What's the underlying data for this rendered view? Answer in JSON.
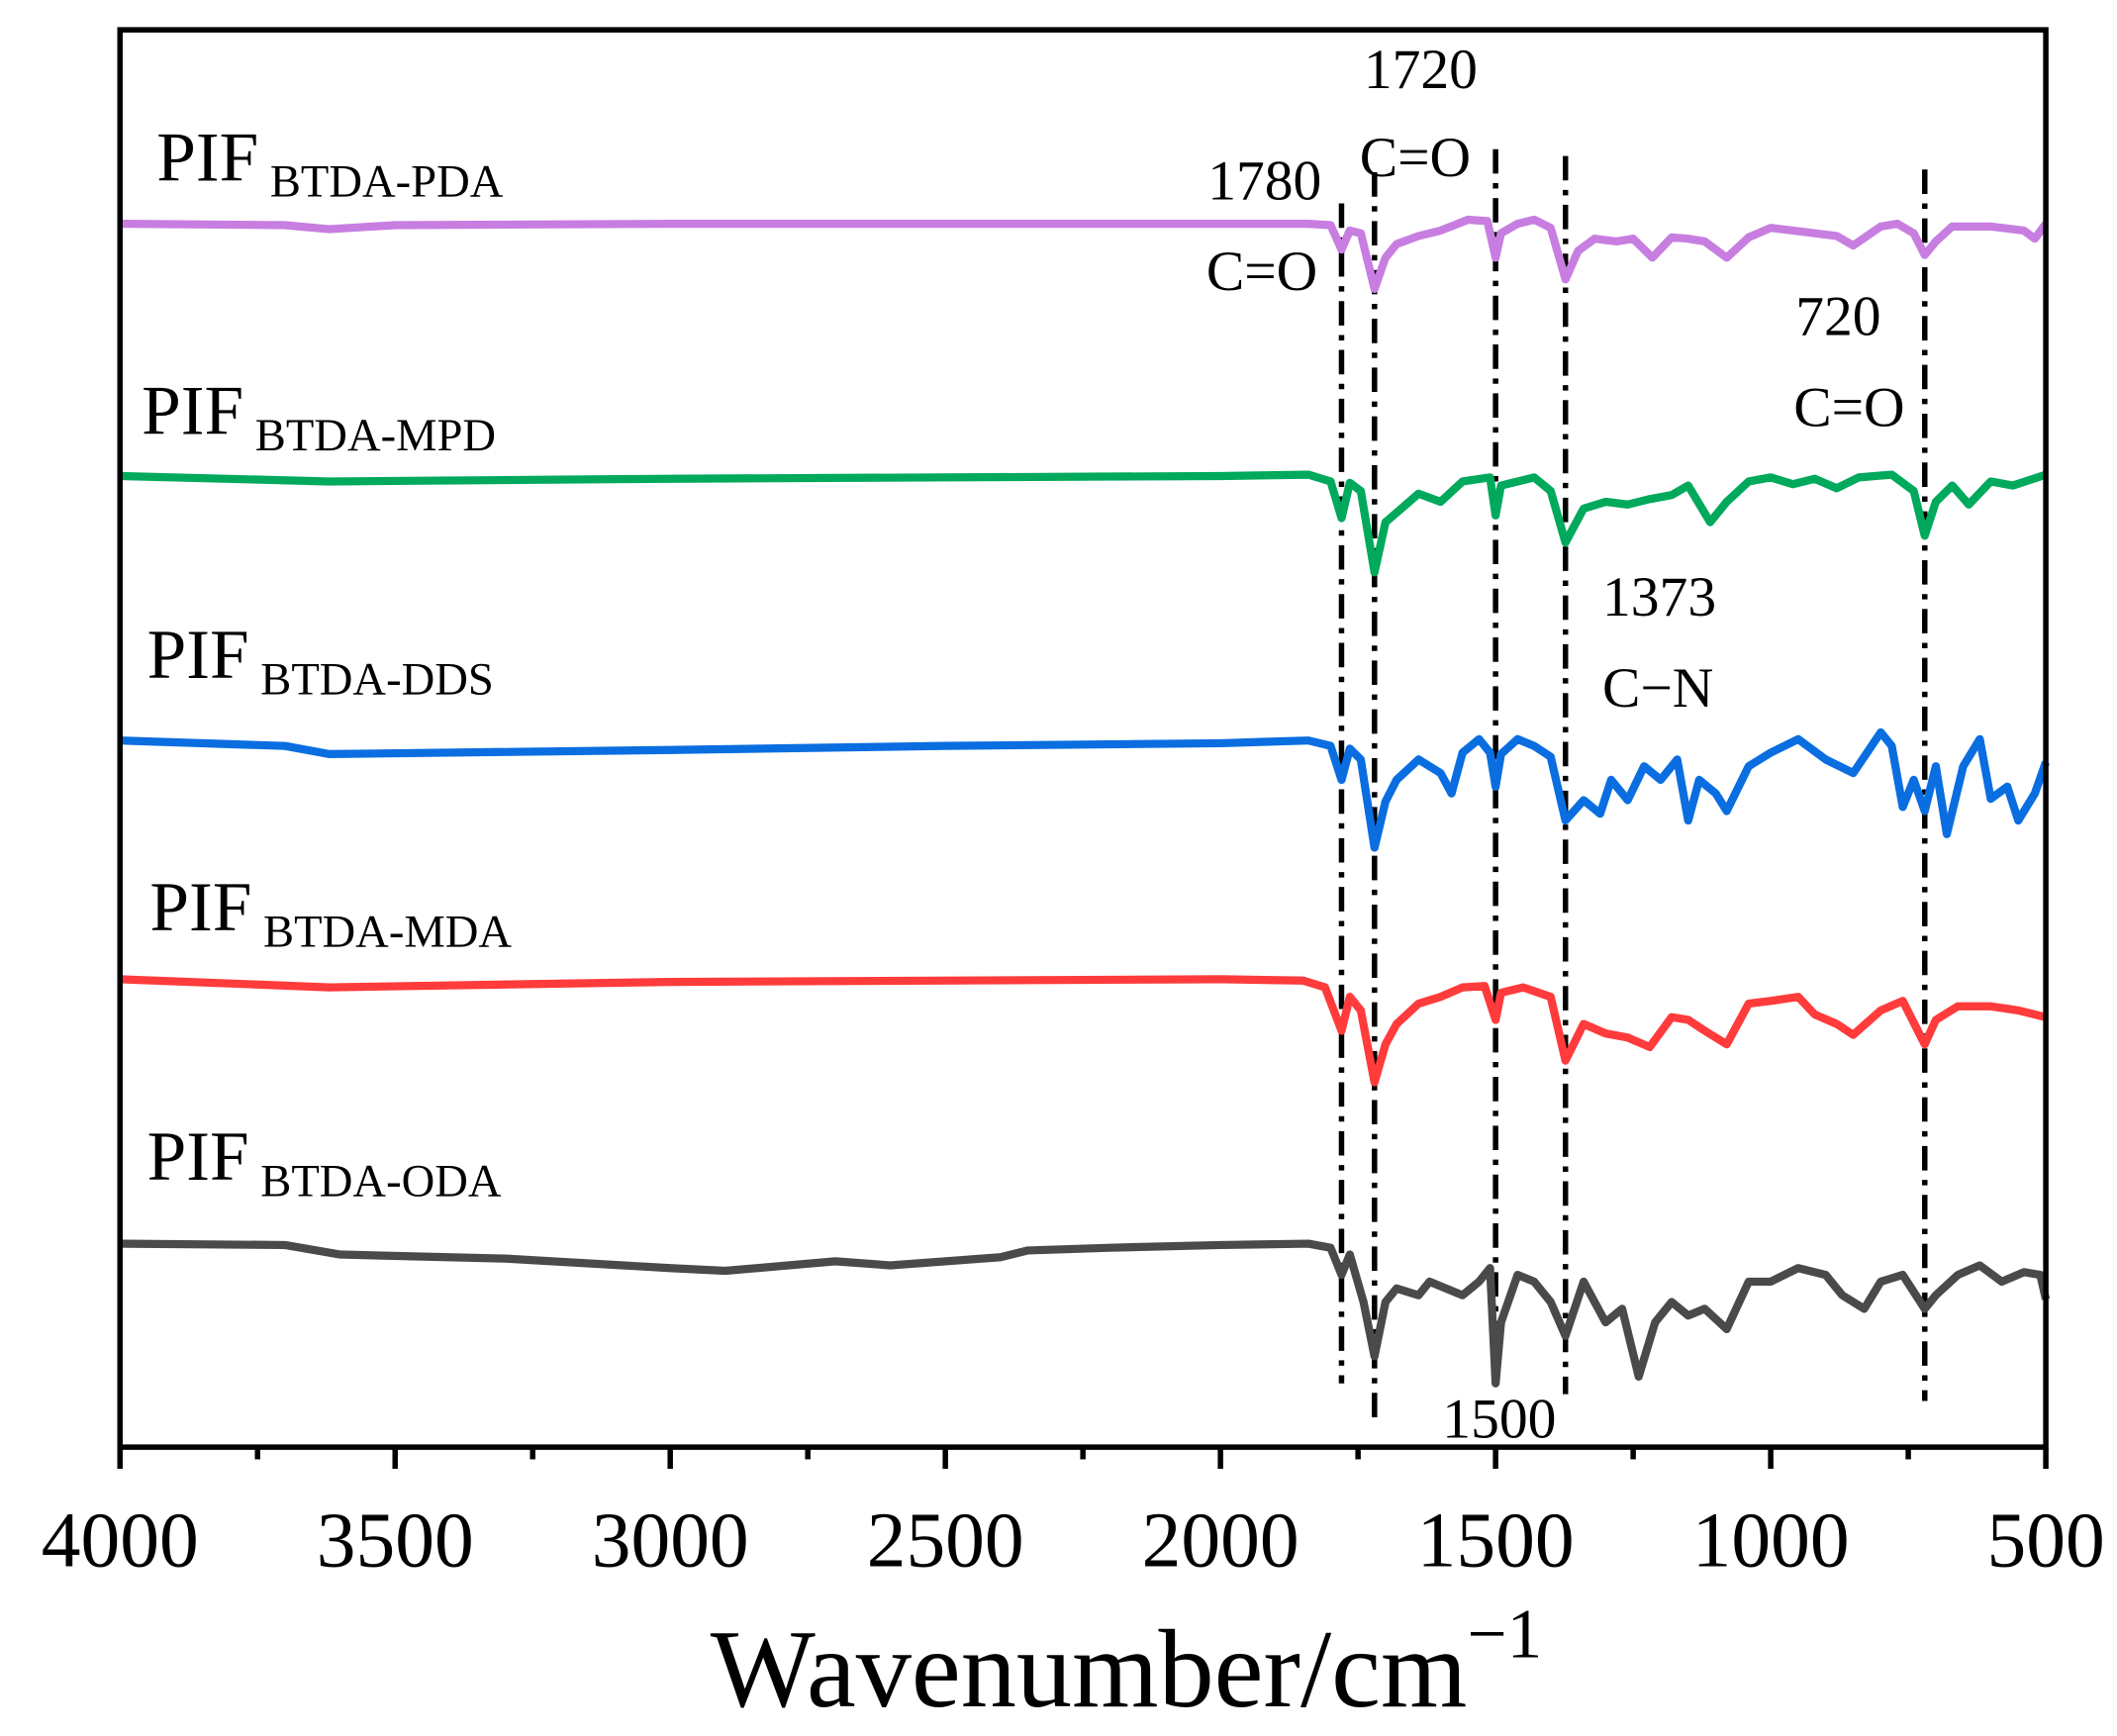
{
  "chart_data": {
    "type": "line",
    "title": "",
    "xlabel": "Wavenumber/cm",
    "xlabel_superscript": "−1",
    "ylabel": "",
    "xlim": [
      4000,
      500
    ],
    "x_reversed": true,
    "ylim": [
      0,
      104.5
    ],
    "y_units": "arbitrary (stacked spectra, no y ticks)",
    "grid": false,
    "legend": "inline labels above each curve",
    "x_ticks": [
      4000,
      3500,
      3000,
      2500,
      2000,
      1500,
      1000,
      500
    ],
    "x_tick_labels": [
      "4000",
      "3500",
      "3000",
      "2500",
      "2000",
      "1500",
      "1000",
      "500"
    ],
    "reference_lines": [
      1780,
      1720,
      1500,
      1373,
      720
    ],
    "annotations": [
      {
        "id": "a1720",
        "lines": [
          "1720",
          "C=O"
        ]
      },
      {
        "id": "a1780",
        "lines": [
          "1780",
          "C=O"
        ]
      },
      {
        "id": "a720",
        "lines": [
          "720",
          "C=O"
        ]
      },
      {
        "id": "a1373",
        "lines": [
          "1373",
          "C−N"
        ]
      },
      {
        "id": "a1500",
        "lines": [
          "1500"
        ]
      }
    ],
    "series": [
      {
        "name": "PIF",
        "subscript": "BTDA-PDA",
        "color": "#c77ee0",
        "points": [
          [
            4000,
            90.2
          ],
          [
            3700,
            90.1
          ],
          [
            3620,
            89.8
          ],
          [
            3500,
            90.1
          ],
          [
            3000,
            90.2
          ],
          [
            2000,
            90.2
          ],
          [
            1840,
            90.2
          ],
          [
            1800,
            90.1
          ],
          [
            1780,
            88.3
          ],
          [
            1765,
            89.7
          ],
          [
            1745,
            89.5
          ],
          [
            1720,
            85.4
          ],
          [
            1700,
            87.7
          ],
          [
            1680,
            88.7
          ],
          [
            1640,
            89.3
          ],
          [
            1600,
            89.7
          ],
          [
            1550,
            90.5
          ],
          [
            1515,
            90.4
          ],
          [
            1500,
            87.7
          ],
          [
            1490,
            89.5
          ],
          [
            1460,
            90.2
          ],
          [
            1430,
            90.5
          ],
          [
            1400,
            89.9
          ],
          [
            1373,
            86.1
          ],
          [
            1350,
            88.2
          ],
          [
            1320,
            89.1
          ],
          [
            1280,
            88.9
          ],
          [
            1250,
            89.1
          ],
          [
            1215,
            87.7
          ],
          [
            1180,
            89.2
          ],
          [
            1150,
            89.1
          ],
          [
            1120,
            88.9
          ],
          [
            1080,
            87.7
          ],
          [
            1040,
            89.2
          ],
          [
            1000,
            89.9
          ],
          [
            960,
            89.7
          ],
          [
            920,
            89.5
          ],
          [
            880,
            89.3
          ],
          [
            850,
            88.6
          ],
          [
            800,
            90.0
          ],
          [
            770,
            90.2
          ],
          [
            740,
            89.5
          ],
          [
            720,
            87.9
          ],
          [
            700,
            88.9
          ],
          [
            670,
            90.0
          ],
          [
            600,
            90.0
          ],
          [
            540,
            89.7
          ],
          [
            520,
            89.1
          ],
          [
            500,
            90.2
          ]
        ]
      },
      {
        "name": "PIF",
        "subscript": "BTDA-MPD",
        "color": "#00a95c",
        "points": [
          [
            4000,
            71.6
          ],
          [
            3620,
            71.2
          ],
          [
            3000,
            71.4
          ],
          [
            2000,
            71.6
          ],
          [
            1840,
            71.7
          ],
          [
            1800,
            71.2
          ],
          [
            1780,
            68.5
          ],
          [
            1765,
            71.1
          ],
          [
            1745,
            70.5
          ],
          [
            1720,
            64.5
          ],
          [
            1700,
            68.2
          ],
          [
            1680,
            68.9
          ],
          [
            1640,
            70.3
          ],
          [
            1600,
            69.7
          ],
          [
            1560,
            71.2
          ],
          [
            1510,
            71.5
          ],
          [
            1500,
            68.7
          ],
          [
            1490,
            70.9
          ],
          [
            1460,
            71.2
          ],
          [
            1430,
            71.5
          ],
          [
            1400,
            70.5
          ],
          [
            1373,
            66.7
          ],
          [
            1340,
            69.2
          ],
          [
            1300,
            69.7
          ],
          [
            1260,
            69.5
          ],
          [
            1220,
            69.9
          ],
          [
            1180,
            70.2
          ],
          [
            1150,
            70.9
          ],
          [
            1110,
            68.2
          ],
          [
            1080,
            69.7
          ],
          [
            1040,
            71.2
          ],
          [
            1000,
            71.5
          ],
          [
            960,
            71.0
          ],
          [
            920,
            71.4
          ],
          [
            880,
            70.7
          ],
          [
            840,
            71.5
          ],
          [
            780,
            71.7
          ],
          [
            740,
            70.5
          ],
          [
            720,
            67.2
          ],
          [
            700,
            69.7
          ],
          [
            670,
            70.9
          ],
          [
            640,
            69.5
          ],
          [
            600,
            71.2
          ],
          [
            560,
            70.9
          ],
          [
            500,
            71.7
          ]
        ]
      },
      {
        "name": "PIF",
        "subscript": "BTDA-DDS",
        "color": "#0a6ee0",
        "points": [
          [
            4000,
            52.1
          ],
          [
            3700,
            51.7
          ],
          [
            3620,
            51.1
          ],
          [
            3000,
            51.4
          ],
          [
            2500,
            51.7
          ],
          [
            2000,
            51.9
          ],
          [
            1840,
            52.1
          ],
          [
            1800,
            51.7
          ],
          [
            1780,
            49.2
          ],
          [
            1765,
            51.5
          ],
          [
            1745,
            50.7
          ],
          [
            1720,
            44.2
          ],
          [
            1700,
            47.6
          ],
          [
            1680,
            49.2
          ],
          [
            1640,
            50.7
          ],
          [
            1600,
            49.7
          ],
          [
            1580,
            48.2
          ],
          [
            1560,
            51.2
          ],
          [
            1530,
            52.2
          ],
          [
            1510,
            51.2
          ],
          [
            1500,
            48.7
          ],
          [
            1490,
            51.1
          ],
          [
            1460,
            52.2
          ],
          [
            1430,
            51.7
          ],
          [
            1400,
            50.9
          ],
          [
            1373,
            46.2
          ],
          [
            1340,
            47.7
          ],
          [
            1310,
            46.7
          ],
          [
            1290,
            49.2
          ],
          [
            1260,
            47.7
          ],
          [
            1230,
            50.2
          ],
          [
            1200,
            49.2
          ],
          [
            1170,
            50.7
          ],
          [
            1150,
            46.2
          ],
          [
            1130,
            49.2
          ],
          [
            1100,
            48.2
          ],
          [
            1080,
            46.9
          ],
          [
            1040,
            50.2
          ],
          [
            1000,
            51.2
          ],
          [
            950,
            52.2
          ],
          [
            900,
            50.7
          ],
          [
            850,
            49.7
          ],
          [
            800,
            52.7
          ],
          [
            780,
            51.7
          ],
          [
            760,
            47.2
          ],
          [
            740,
            49.2
          ],
          [
            720,
            46.9
          ],
          [
            700,
            50.2
          ],
          [
            680,
            45.2
          ],
          [
            650,
            50.2
          ],
          [
            620,
            52.2
          ],
          [
            600,
            47.8
          ],
          [
            570,
            48.7
          ],
          [
            550,
            46.2
          ],
          [
            520,
            48.2
          ],
          [
            500,
            50.5
          ]
        ]
      },
      {
        "name": "PIF",
        "subscript": "BTDA-MDA",
        "color": "#ff3b3b",
        "points": [
          [
            4000,
            34.5
          ],
          [
            3620,
            33.9
          ],
          [
            3000,
            34.3
          ],
          [
            2000,
            34.5
          ],
          [
            1850,
            34.4
          ],
          [
            1810,
            33.9
          ],
          [
            1780,
            30.7
          ],
          [
            1765,
            33.2
          ],
          [
            1745,
            32.2
          ],
          [
            1720,
            26.9
          ],
          [
            1700,
            29.7
          ],
          [
            1680,
            31.2
          ],
          [
            1640,
            32.7
          ],
          [
            1600,
            33.2
          ],
          [
            1560,
            33.9
          ],
          [
            1520,
            34.0
          ],
          [
            1500,
            31.5
          ],
          [
            1490,
            33.5
          ],
          [
            1450,
            33.9
          ],
          [
            1400,
            33.2
          ],
          [
            1373,
            28.5
          ],
          [
            1340,
            31.2
          ],
          [
            1300,
            30.5
          ],
          [
            1260,
            30.2
          ],
          [
            1220,
            29.5
          ],
          [
            1180,
            31.7
          ],
          [
            1150,
            31.5
          ],
          [
            1120,
            30.7
          ],
          [
            1080,
            29.7
          ],
          [
            1040,
            32.7
          ],
          [
            1000,
            32.9
          ],
          [
            950,
            33.2
          ],
          [
            920,
            31.9
          ],
          [
            880,
            31.2
          ],
          [
            850,
            30.4
          ],
          [
            800,
            32.2
          ],
          [
            760,
            32.9
          ],
          [
            720,
            29.7
          ],
          [
            700,
            31.5
          ],
          [
            660,
            32.5
          ],
          [
            600,
            32.5
          ],
          [
            550,
            32.2
          ],
          [
            500,
            31.7
          ]
        ]
      },
      {
        "name": "PIF",
        "subscript": "BTDA-ODA",
        "color": "#4a4a4a",
        "points": [
          [
            4000,
            15.0
          ],
          [
            3700,
            14.9
          ],
          [
            3600,
            14.2
          ],
          [
            3300,
            13.9
          ],
          [
            3000,
            13.2
          ],
          [
            2900,
            13.0
          ],
          [
            2700,
            13.7
          ],
          [
            2600,
            13.4
          ],
          [
            2400,
            14.0
          ],
          [
            2350,
            14.5
          ],
          [
            2200,
            14.7
          ],
          [
            2000,
            14.9
          ],
          [
            1840,
            15.0
          ],
          [
            1800,
            14.7
          ],
          [
            1780,
            12.7
          ],
          [
            1765,
            14.2
          ],
          [
            1740,
            10.7
          ],
          [
            1720,
            6.7
          ],
          [
            1700,
            10.7
          ],
          [
            1680,
            11.7
          ],
          [
            1640,
            11.2
          ],
          [
            1620,
            12.2
          ],
          [
            1560,
            11.2
          ],
          [
            1530,
            12.2
          ],
          [
            1510,
            13.2
          ],
          [
            1500,
            4.7
          ],
          [
            1490,
            9.2
          ],
          [
            1460,
            12.7
          ],
          [
            1430,
            12.2
          ],
          [
            1400,
            10.7
          ],
          [
            1373,
            8.2
          ],
          [
            1340,
            12.2
          ],
          [
            1300,
            9.2
          ],
          [
            1270,
            10.2
          ],
          [
            1240,
            5.2
          ],
          [
            1210,
            9.2
          ],
          [
            1180,
            10.7
          ],
          [
            1150,
            9.7
          ],
          [
            1120,
            10.2
          ],
          [
            1080,
            8.7
          ],
          [
            1040,
            12.2
          ],
          [
            1000,
            12.2
          ],
          [
            950,
            13.2
          ],
          [
            900,
            12.7
          ],
          [
            870,
            11.2
          ],
          [
            830,
            10.2
          ],
          [
            800,
            12.2
          ],
          [
            760,
            12.7
          ],
          [
            720,
            10.2
          ],
          [
            700,
            11.2
          ],
          [
            660,
            12.7
          ],
          [
            620,
            13.4
          ],
          [
            580,
            12.2
          ],
          [
            540,
            12.9
          ],
          [
            510,
            12.7
          ],
          [
            500,
            10.9
          ]
        ]
      }
    ]
  }
}
